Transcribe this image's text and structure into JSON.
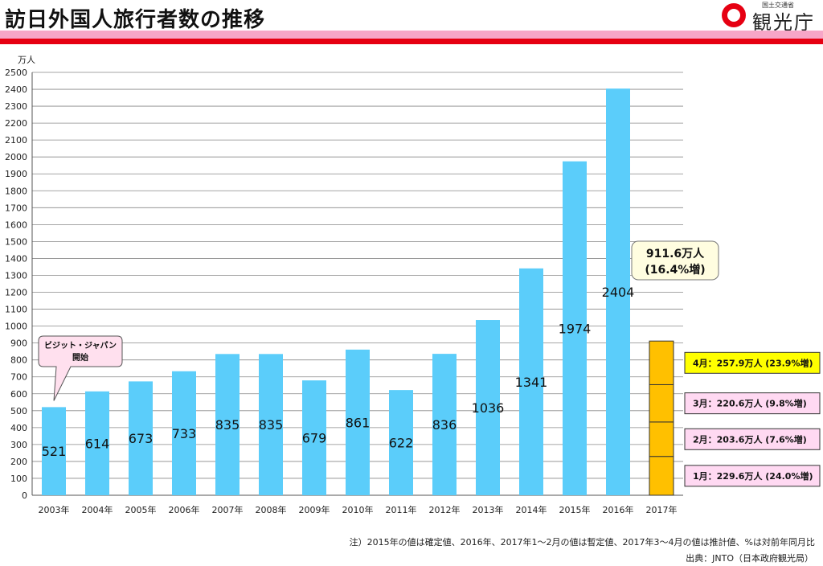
{
  "header": {
    "title": "訪日外国人旅行者数の推移",
    "logo_ministry": "国土交通省",
    "logo_name": "観光庁"
  },
  "colors": {
    "bar": "#5bcdfa",
    "bar_2017": "#ffc000",
    "pink_band": "#f7a6c7",
    "red_band": "#e60012",
    "callout_yellow": "#ffff00",
    "callout_pink": "#ffd9f2",
    "callout_total": "#fffde0"
  },
  "chart_data": {
    "type": "bar",
    "unit_label": "万人",
    "ylim": [
      0,
      2500
    ],
    "ytick_step": 100,
    "grid": true,
    "categories": [
      "2003年",
      "2004年",
      "2005年",
      "2006年",
      "2007年",
      "2008年",
      "2009年",
      "2010年",
      "2011年",
      "2012年",
      "2013年",
      "2014年",
      "2015年",
      "2016年",
      "2017年"
    ],
    "values": [
      521,
      614,
      673,
      733,
      835,
      835,
      679,
      861,
      622,
      836,
      1036,
      1341,
      1974,
      2404,
      null
    ],
    "labels": [
      "521",
      "614",
      "673",
      "733",
      "835",
      "835",
      "679",
      "861",
      "622",
      "836",
      "1036",
      "1341",
      "1974",
      "2404",
      ""
    ],
    "stacked_2017": {
      "category": "2017年",
      "total_value": 911.6,
      "total_label_line1": "911.6万人",
      "total_label_line2": "(16.4%増)",
      "segments": [
        {
          "month": "1月",
          "value": 229.6,
          "label": "1月：229.6万人 (24.0%増)"
        },
        {
          "month": "2月",
          "value": 203.6,
          "label": "2月：203.6万人 (7.6%増)"
        },
        {
          "month": "3月",
          "value": 220.6,
          "label": "3月：220.6万人 (9.8%増)"
        },
        {
          "month": "4月",
          "value": 257.9,
          "label": "4月：257.9万人 (23.9%増)"
        }
      ]
    },
    "annotation": {
      "category": "2003年",
      "line1": "ビジット・ジャパン",
      "line2": "開始"
    }
  },
  "footer": {
    "note": "注）2015年の値は確定値、2016年、2017年1～2月の値は暫定値、2017年3～4月の値は推計値、%は対前年同月比",
    "source": "出典：JNTO（日本政府観光局）"
  }
}
